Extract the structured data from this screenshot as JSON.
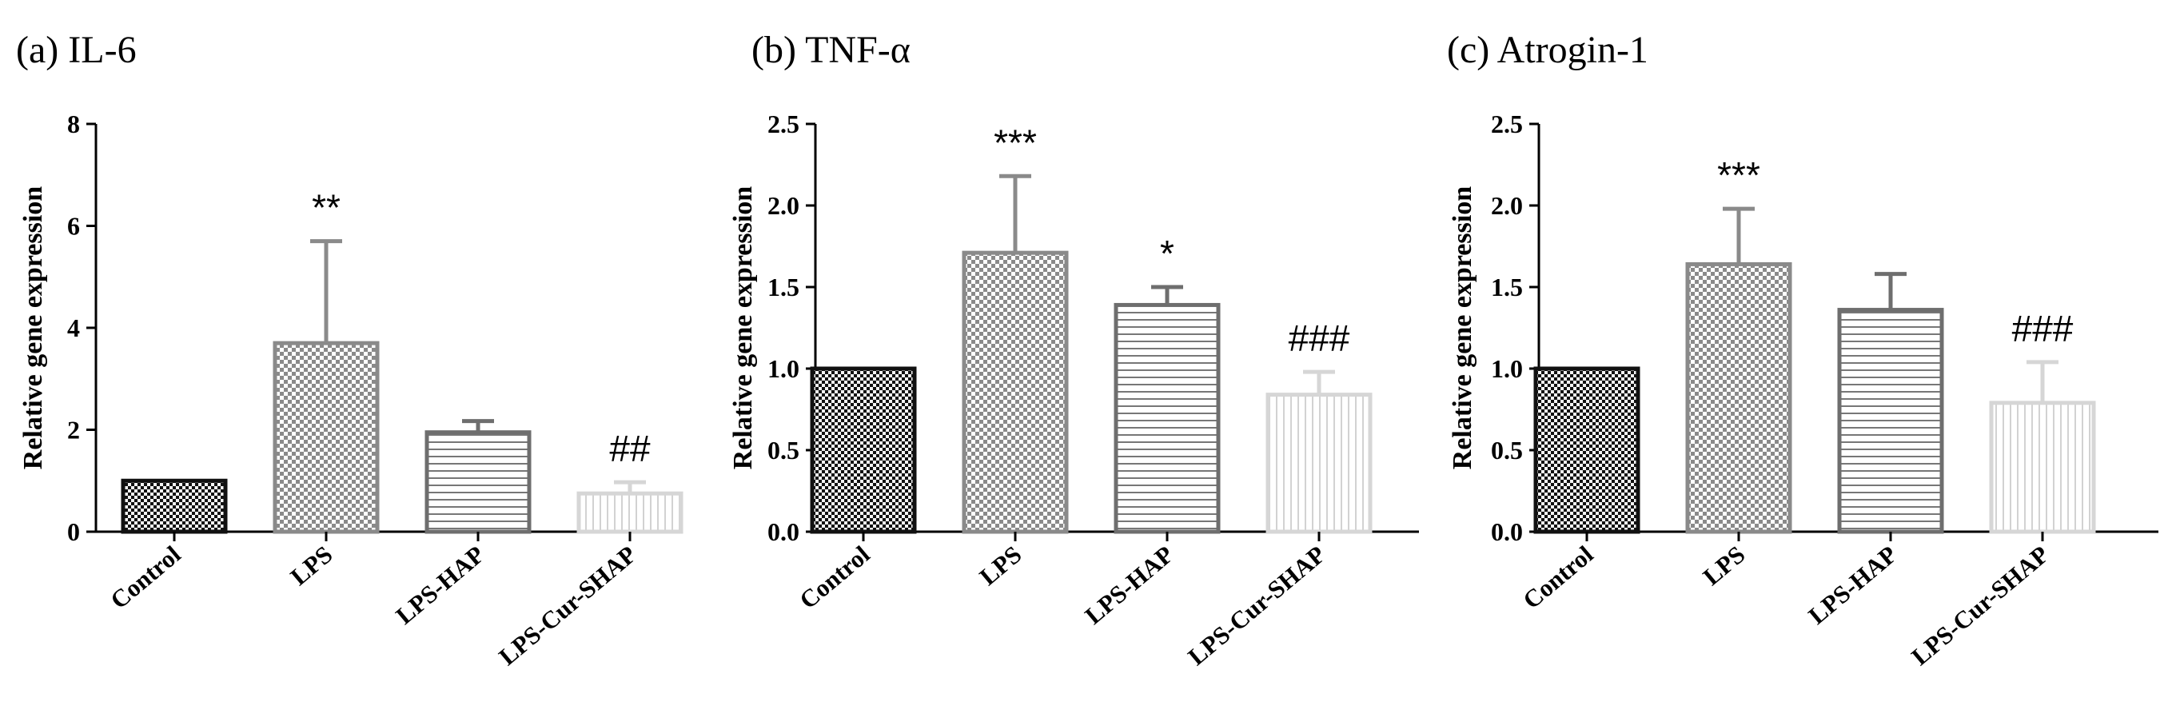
{
  "chart_data": [
    {
      "type": "bar",
      "title": "(a) IL-6",
      "xlabel": "",
      "ylabel": "Relative gene expression",
      "categories": [
        "Control",
        "LPS",
        "LPS-HAP",
        "LPS-Cur-SHAP"
      ],
      "values": [
        1.0,
        3.7,
        1.95,
        0.75
      ],
      "errors": [
        0,
        2.0,
        0.22,
        0.22
      ],
      "significance": [
        "",
        "**",
        "",
        "##"
      ],
      "ylim": [
        0,
        8
      ],
      "yticks": [
        "0",
        "2",
        "4",
        "6",
        "8"
      ],
      "ytick_values": [
        0,
        2,
        4,
        6,
        8
      ]
    },
    {
      "type": "bar",
      "title": "(b) TNF-α",
      "xlabel": "",
      "ylabel": "Relative gene expression",
      "categories": [
        "Control",
        "LPS",
        "LPS-HAP",
        "LPS-Cur-SHAP"
      ],
      "values": [
        1.0,
        1.71,
        1.39,
        0.84
      ],
      "errors": [
        0,
        0.47,
        0.11,
        0.14
      ],
      "significance": [
        "",
        "***",
        "*",
        "###"
      ],
      "ylim": [
        0,
        2.5
      ],
      "yticks": [
        "0.0",
        "0.5",
        "1.0",
        "1.5",
        "2.0",
        "2.5"
      ],
      "ytick_values": [
        0,
        0.5,
        1.0,
        1.5,
        2.0,
        2.5
      ]
    },
    {
      "type": "bar",
      "title": "(c) Atrogin-1",
      "xlabel": "",
      "ylabel": "Relative gene expression",
      "categories": [
        "Control",
        "LPS",
        "LPS-HAP",
        "LPS-Cur-SHAP"
      ],
      "values": [
        1.0,
        1.64,
        1.36,
        0.79
      ],
      "errors": [
        0,
        0.34,
        0.22,
        0.25
      ],
      "significance": [
        "",
        "***",
        "",
        "###"
      ],
      "ylim": [
        0,
        2.5
      ],
      "yticks": [
        "0.0",
        "0.5",
        "1.0",
        "1.5",
        "2.0",
        "2.5"
      ],
      "ytick_values": [
        0,
        0.5,
        1.0,
        1.5,
        2.0,
        2.5
      ]
    }
  ],
  "colors": {
    "control_stroke": "#111111",
    "lps_stroke": "#8a8a8a",
    "hap_stroke": "#6e6e6e",
    "cur_stroke": "#d6d6d6",
    "axis": "#000000"
  },
  "bar_patterns": [
    "checker-dark",
    "checker-light",
    "horizontal-lines",
    "vertical-lines"
  ]
}
